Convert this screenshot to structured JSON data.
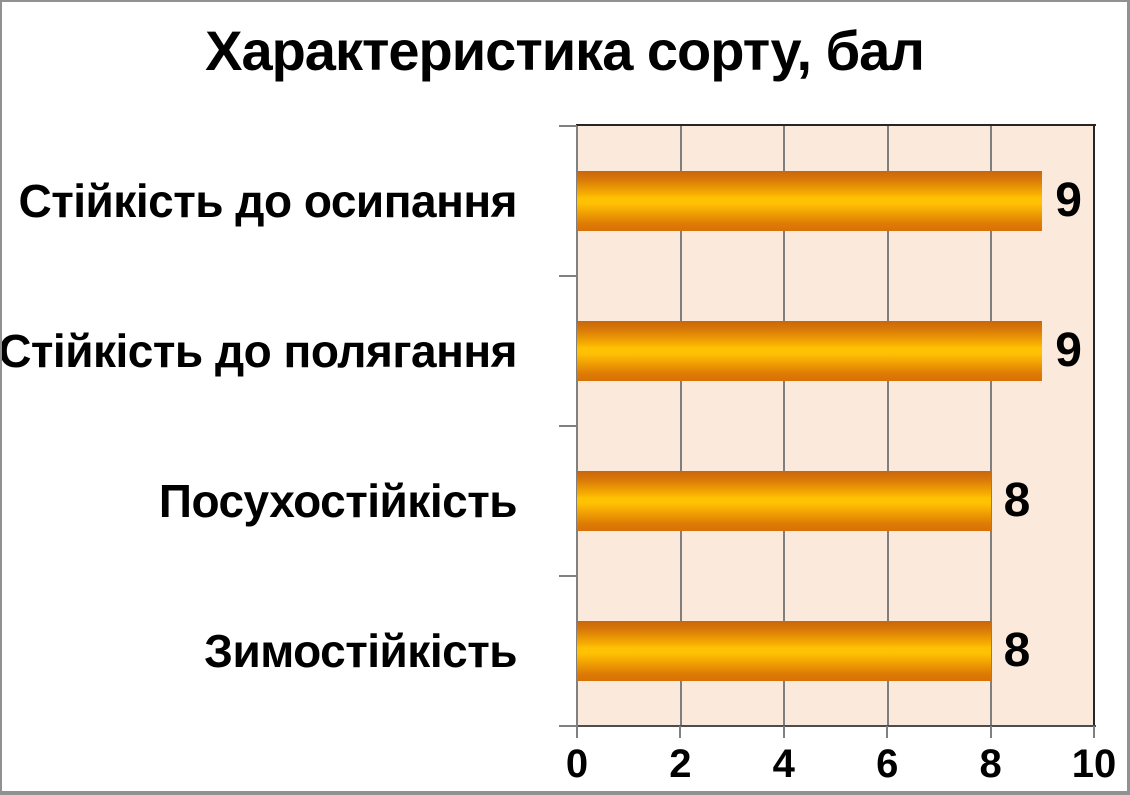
{
  "chart_data": {
    "type": "bar",
    "orientation": "horizontal",
    "title": "Характеристика сорту, бал",
    "categories_top_to_bottom": true,
    "categories": [
      "Стійкість до осипання",
      "Стійкість до полягання",
      "Посухостійкість",
      "Зимостійкість"
    ],
    "values": [
      9,
      9,
      8,
      8
    ],
    "xlabel": "",
    "ylabel": "",
    "xlim": [
      0,
      10
    ],
    "xticks": [
      0,
      2,
      4,
      6,
      8,
      10
    ],
    "grid": "vertical-only",
    "legend": false,
    "data_labels_shown": true
  },
  "colors": {
    "bar_gradient_stops": [
      "#C9660A 0%",
      "#DA7A08 15%",
      "#F7AE02 38%",
      "#FFC303 46%",
      "#FFC103 54%",
      "#F2A403 68%",
      "#DD7B05 88%",
      "#D87106 100%"
    ],
    "plot_background": "#FBE9DC",
    "gridline": "#7F7F7F",
    "axis_line": "#808080",
    "plot_border": "#262626",
    "text": "#000000",
    "frame_border": "#919191",
    "background": "#FFFFFF"
  }
}
